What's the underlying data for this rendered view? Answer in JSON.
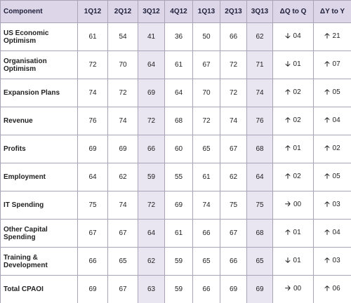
{
  "header": [
    "Component",
    "1Q12",
    "2Q12",
    "3Q12",
    "4Q12",
    "1Q13",
    "2Q13",
    "3Q13",
    "ΔQ to Q",
    "ΔY to Y"
  ],
  "rows": [
    {
      "label": "US Economic Optimism",
      "values": [
        "61",
        "54",
        "41",
        "36",
        "50",
        "66",
        "62"
      ],
      "q": {
        "arrow": "🡣",
        "value": "04"
      },
      "y": {
        "arrow": "🡡",
        "value": "21"
      }
    },
    {
      "label": "Organisation Optimism",
      "values": [
        "72",
        "70",
        "64",
        "61",
        "67",
        "72",
        "71"
      ],
      "q": {
        "arrow": "🡣",
        "value": "01"
      },
      "y": {
        "arrow": "🡡",
        "value": "07"
      }
    },
    {
      "label": "Expansion Plans",
      "values": [
        "74",
        "72",
        "69",
        "64",
        "70",
        "72",
        "74"
      ],
      "q": {
        "arrow": "🡡",
        "value": "02"
      },
      "y": {
        "arrow": "🡡",
        "value": "05"
      }
    },
    {
      "label": "Revenue",
      "values": [
        "76",
        "74",
        "72",
        "68",
        "72",
        "74",
        "76"
      ],
      "q": {
        "arrow": "🡡",
        "value": "02"
      },
      "y": {
        "arrow": "🡡",
        "value": "04"
      }
    },
    {
      "label": "Profits",
      "values": [
        "69",
        "69",
        "66",
        "60",
        "65",
        "67",
        "68"
      ],
      "q": {
        "arrow": "🡡",
        "value": "01"
      },
      "y": {
        "arrow": "🡡",
        "value": "02"
      }
    },
    {
      "label": "Employment",
      "values": [
        "64",
        "62",
        "59",
        "55",
        "61",
        "62",
        "64"
      ],
      "q": {
        "arrow": "🡡",
        "value": "02"
      },
      "y": {
        "arrow": "🡡",
        "value": "05"
      }
    },
    {
      "label": "IT Spending",
      "values": [
        "75",
        "74",
        "72",
        "69",
        "74",
        "75",
        "75"
      ],
      "q": {
        "arrow": "🡢",
        "value": "00"
      },
      "y": {
        "arrow": "🡡",
        "value": "03"
      }
    },
    {
      "label": "Other Capital Spending",
      "values": [
        "67",
        "67",
        "64",
        "61",
        "66",
        "67",
        "68"
      ],
      "q": {
        "arrow": "🡡",
        "value": "01"
      },
      "y": {
        "arrow": "🡡",
        "value": "04"
      }
    },
    {
      "label": "Training & Development",
      "values": [
        "66",
        "65",
        "62",
        "59",
        "65",
        "66",
        "65"
      ],
      "q": {
        "arrow": "🡣",
        "value": "01"
      },
      "y": {
        "arrow": "🡡",
        "value": "03"
      }
    },
    {
      "label": "Total CPAOI",
      "values": [
        "69",
        "67",
        "63",
        "59",
        "66",
        "69",
        "69"
      ],
      "q": {
        "arrow": "🡢",
        "value": "00"
      },
      "y": {
        "arrow": "🡡",
        "value": "06"
      }
    }
  ]
}
